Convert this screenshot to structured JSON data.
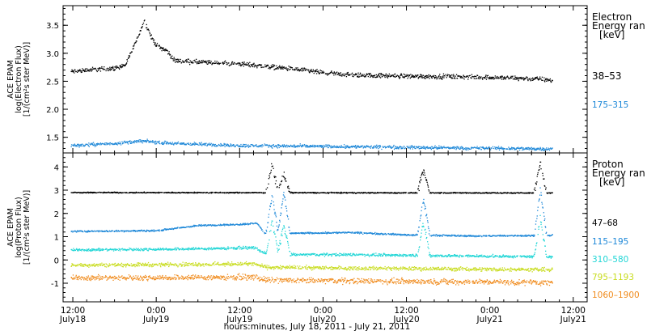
{
  "chart_data": [
    {
      "type": "scatter",
      "panel": "electron",
      "ylabel": [
        "ACE EPAM",
        "log(Electron Flux)",
        "[1/(cm²s ster MeV)]"
      ],
      "ylim": [
        1.22,
        3.85
      ],
      "yticks": [
        1.5,
        2.0,
        2.5,
        3.0,
        3.5
      ],
      "ytick_labels": [
        "1.5",
        "2.0",
        "2.5",
        "3.0",
        "3.5"
      ],
      "legend_title": [
        "Electron",
        "Energy ran",
        "[keV]"
      ],
      "legend_placement": "right",
      "series": [
        {
          "name": "38–53",
          "color": "#000000",
          "profile": [
            [
              -0.3,
              2.68
            ],
            [
              3,
              2.72
            ],
            [
              6,
              2.74
            ],
            [
              7.5,
              2.8
            ],
            [
              9,
              3.2
            ],
            [
              10.2,
              3.6
            ],
            [
              11.2,
              3.3
            ],
            [
              12,
              3.15
            ],
            [
              13.5,
              3.05
            ],
            [
              14.5,
              2.88
            ],
            [
              18,
              2.85
            ],
            [
              24,
              2.82
            ],
            [
              30,
              2.75
            ],
            [
              36,
              2.66
            ],
            [
              40,
              2.62
            ],
            [
              48,
              2.6
            ],
            [
              60,
              2.58
            ],
            [
              67,
              2.55
            ],
            [
              69,
              2.52
            ]
          ],
          "noise": 0.035
        },
        {
          "name": "175–315",
          "color": "#1e88d8",
          "profile": [
            [
              -0.3,
              1.36
            ],
            [
              6,
              1.4
            ],
            [
              10,
              1.44
            ],
            [
              14,
              1.4
            ],
            [
              24,
              1.36
            ],
            [
              40,
              1.34
            ],
            [
              69,
              1.3
            ]
          ],
          "noise": 0.025
        }
      ]
    },
    {
      "type": "scatter",
      "panel": "proton",
      "ylabel": [
        "ACE EPAM",
        "log(Proton Flux)",
        "[1/(cm²s ster MeV)]"
      ],
      "ylim": [
        -1.8,
        4.6
      ],
      "yticks": [
        -1,
        0,
        1,
        2,
        3,
        4
      ],
      "ytick_labels": [
        "-1",
        "0",
        "1",
        "2",
        "3",
        "4"
      ],
      "legend_title": [
        "Proton",
        "Energy ran",
        "[keV]"
      ],
      "legend_placement": "right",
      "series": [
        {
          "name": "47–68",
          "color": "#000000",
          "profile": [
            [
              -0.3,
              2.92
            ],
            [
              69,
              2.9
            ]
          ],
          "noise": 0.02,
          "spikes": [
            [
              28.6,
              4.1
            ],
            [
              30.3,
              3.7
            ],
            [
              50.4,
              3.9
            ],
            [
              67.2,
              4.2
            ]
          ]
        },
        {
          "name": "115–195",
          "color": "#1e88d8",
          "profile": [
            [
              -0.3,
              1.25
            ],
            [
              12,
              1.28
            ],
            [
              18,
              1.5
            ],
            [
              24,
              1.55
            ],
            [
              26.5,
              1.6
            ],
            [
              27.5,
              1.15
            ],
            [
              40,
              1.2
            ],
            [
              48,
              1.1
            ],
            [
              58,
              1.05
            ],
            [
              69,
              1.08
            ]
          ],
          "noise": 0.03,
          "spikes": [
            [
              28.6,
              2.8
            ],
            [
              30.3,
              2.9
            ],
            [
              50.4,
              2.6
            ],
            [
              67.2,
              3.0
            ]
          ]
        },
        {
          "name": "310–580",
          "color": "#22d6d6",
          "profile": [
            [
              -0.3,
              0.45
            ],
            [
              18,
              0.5
            ],
            [
              26,
              0.55
            ],
            [
              28,
              0.25
            ],
            [
              40,
              0.25
            ],
            [
              69,
              0.15
            ]
          ],
          "noise": 0.05,
          "spikes": [
            [
              28.6,
              1.7
            ],
            [
              30.3,
              1.5
            ],
            [
              50.4,
              1.6
            ],
            [
              67.2,
              1.8
            ]
          ]
        },
        {
          "name": "795–1193",
          "color": "#c8dc1e",
          "profile": [
            [
              -0.3,
              -0.2
            ],
            [
              26,
              -0.15
            ],
            [
              28,
              -0.3
            ],
            [
              69,
              -0.4
            ]
          ],
          "noise": 0.07,
          "spikes": []
        },
        {
          "name": "1060–1900",
          "color": "#f08c1e",
          "profile": [
            [
              -0.3,
              -0.75
            ],
            [
              26,
              -0.72
            ],
            [
              28,
              -0.85
            ],
            [
              69,
              -0.95
            ]
          ],
          "noise": 0.1,
          "spikes": []
        }
      ]
    }
  ],
  "x_axis": {
    "label": "hours:minutes, July 18, 2011 - July 21, 2011",
    "range_hours_from_july18_12": [
      -1.4,
      74
    ],
    "ticks": [
      {
        "hour": 0,
        "time": "12:00",
        "date": "July18"
      },
      {
        "hour": 12,
        "time": "0:00",
        "date": "July19"
      },
      {
        "hour": 24,
        "time": "12:00",
        "date": "July19"
      },
      {
        "hour": 36,
        "time": "0:00",
        "date": "July20"
      },
      {
        "hour": 48,
        "time": "12:00",
        "date": "July20"
      },
      {
        "hour": 60,
        "time": "0:00",
        "date": "July21"
      },
      {
        "hour": 72,
        "time": "12:00",
        "date": "July21"
      }
    ]
  }
}
